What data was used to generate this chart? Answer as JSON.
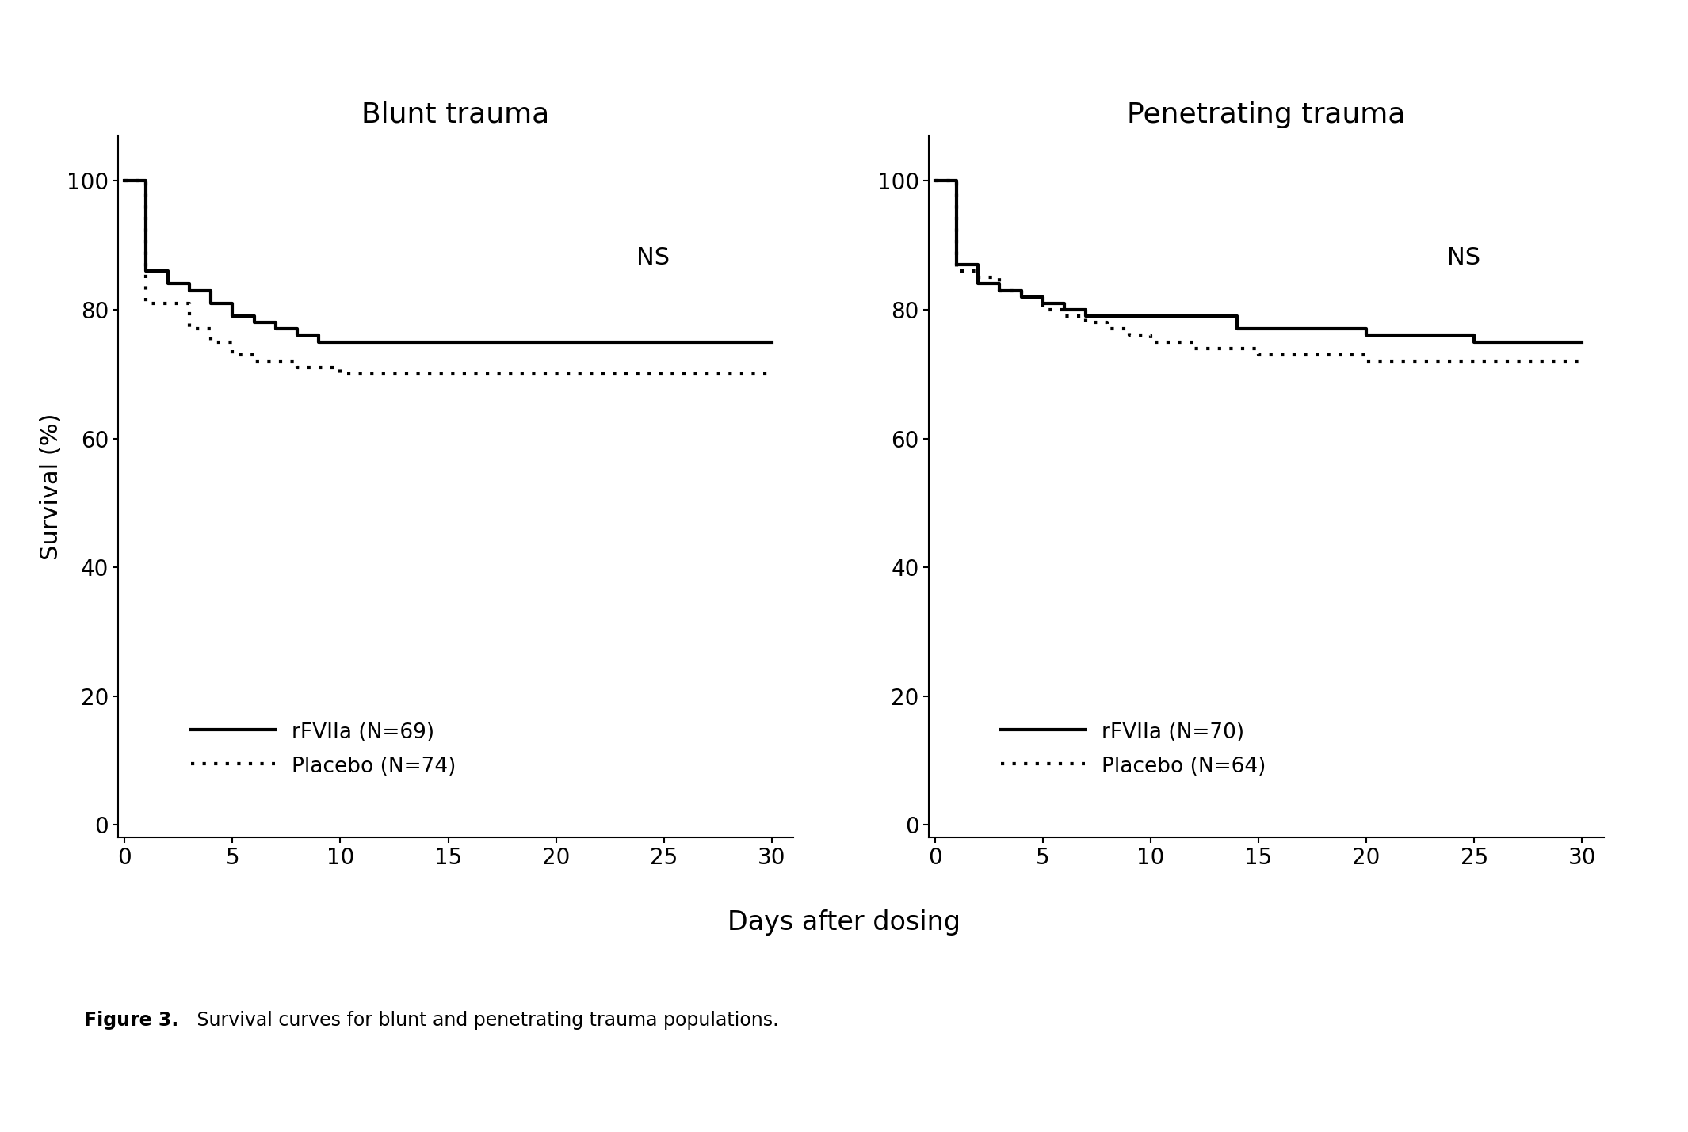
{
  "blunt_rfviia_x": [
    0,
    1,
    1,
    2,
    2,
    3,
    3,
    4,
    4,
    5,
    5,
    6,
    6,
    7,
    7,
    8,
    8,
    9,
    9,
    10,
    10,
    11,
    30
  ],
  "blunt_rfviia_y": [
    100,
    100,
    86,
    86,
    84,
    84,
    83,
    83,
    81,
    81,
    79,
    79,
    78,
    78,
    77,
    77,
    76,
    76,
    75,
    75,
    75,
    75,
    75
  ],
  "blunt_placebo_x": [
    0,
    1,
    1,
    3,
    3,
    4,
    4,
    5,
    5,
    6,
    6,
    7,
    7,
    8,
    8,
    9,
    9,
    10,
    10,
    11,
    30
  ],
  "blunt_placebo_y": [
    100,
    100,
    81,
    81,
    77,
    77,
    75,
    75,
    73,
    73,
    72,
    72,
    72,
    72,
    71,
    71,
    71,
    71,
    70,
    70,
    70
  ],
  "pen_rfviia_x": [
    0,
    1,
    1,
    2,
    2,
    3,
    3,
    4,
    4,
    5,
    5,
    6,
    6,
    7,
    7,
    8,
    8,
    10,
    10,
    14,
    14,
    20,
    20,
    25,
    25,
    30
  ],
  "pen_rfviia_y": [
    100,
    100,
    87,
    87,
    84,
    84,
    83,
    83,
    82,
    82,
    81,
    81,
    80,
    80,
    79,
    79,
    79,
    79,
    79,
    79,
    77,
    77,
    76,
    76,
    75,
    75
  ],
  "pen_placebo_x": [
    0,
    1,
    1,
    2,
    2,
    3,
    3,
    4,
    4,
    5,
    5,
    6,
    6,
    7,
    7,
    8,
    8,
    9,
    9,
    10,
    10,
    12,
    12,
    15,
    15,
    20,
    20,
    22,
    22,
    25,
    30
  ],
  "pen_placebo_y": [
    100,
    100,
    86,
    86,
    85,
    85,
    83,
    83,
    82,
    82,
    80,
    80,
    79,
    79,
    78,
    78,
    77,
    77,
    76,
    76,
    75,
    75,
    74,
    74,
    73,
    73,
    72,
    72,
    72,
    72,
    72
  ],
  "title_blunt": "Blunt trauma",
  "title_pen": "Penetrating trauma",
  "ylabel": "Survival (%)",
  "xlabel": "Days after dosing",
  "ylim": [
    -2,
    107
  ],
  "xlim": [
    -0.3,
    31
  ],
  "yticks": [
    0,
    20,
    40,
    60,
    80,
    100
  ],
  "xticks": [
    0,
    5,
    10,
    15,
    20,
    25,
    30
  ],
  "legend_blunt_rfviia": "rFVIIa (N=69)",
  "legend_blunt_placebo": "Placebo (N=74)",
  "legend_pen_rfviia": "rFVIIa (N=70)",
  "legend_pen_placebo": "Placebo (N=64)",
  "ns_text": "NS",
  "caption_bold": "Figure 3.",
  "caption_normal": " Survival curves for blunt and penetrating trauma populations.",
  "line_color": "#000000",
  "background_color": "#ffffff",
  "title_fontsize": 26,
  "tick_fontsize": 20,
  "ylabel_fontsize": 22,
  "xlabel_fontsize": 24,
  "ns_fontsize": 22,
  "legend_fontsize": 19,
  "caption_fontsize": 17
}
